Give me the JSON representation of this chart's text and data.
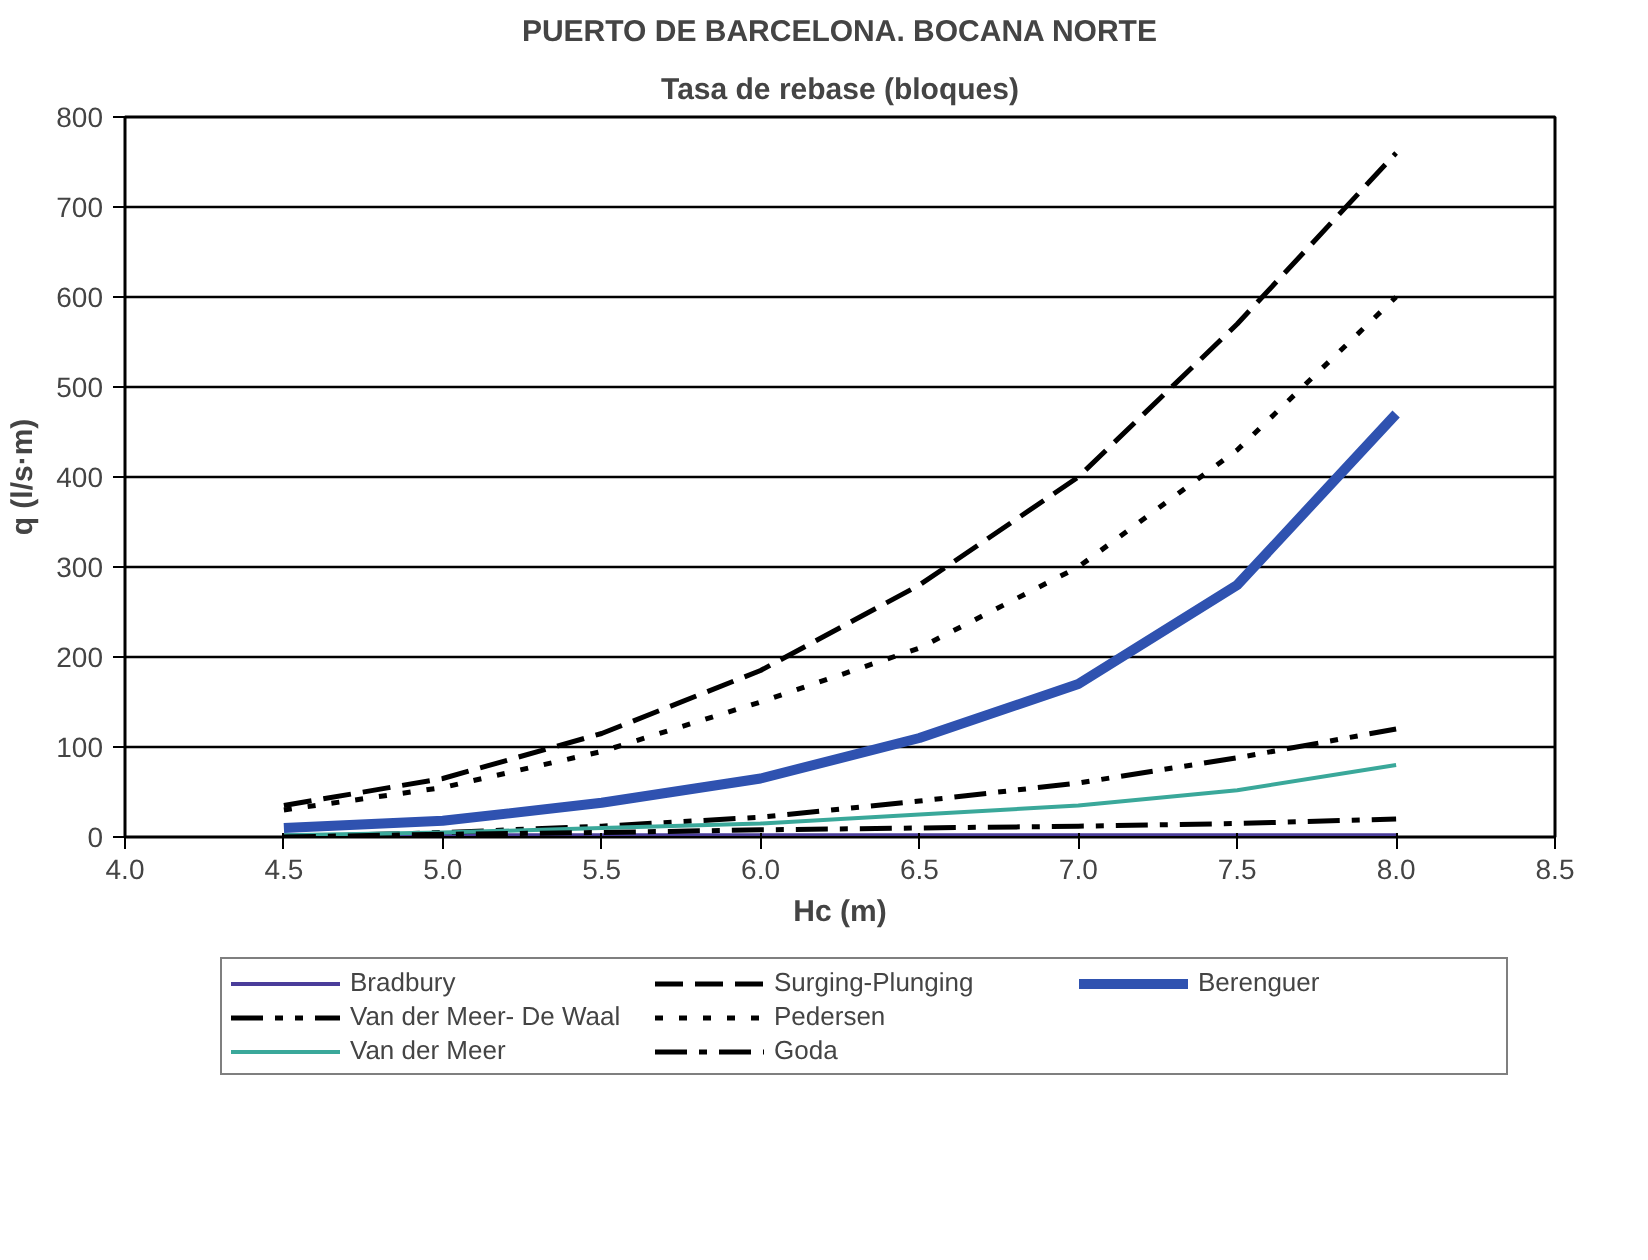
{
  "chart_data": {
    "type": "line",
    "title": "PUERTO DE BARCELONA. BOCANA NORTE",
    "subtitle": "Tasa de rebase (bloques)",
    "xlabel": "Hc (m)",
    "ylabel": "q (l/s·m)",
    "x": [
      4.5,
      5.0,
      5.5,
      6.0,
      6.5,
      7.0,
      7.5,
      8.0
    ],
    "series": [
      {
        "name": "Bradbury",
        "color": "#4a3d9a",
        "line_style": "solid",
        "values": [
          2,
          2,
          2,
          2,
          2,
          2,
          2,
          2
        ]
      },
      {
        "name": "Van der Meer- De Waal",
        "color": "#000000",
        "line_style": "dashdotdot",
        "values": [
          0,
          5,
          12,
          22,
          40,
          60,
          88,
          120
        ]
      },
      {
        "name": "Van der Meer",
        "color": "#3aa89a",
        "line_style": "solid",
        "values": [
          2,
          5,
          10,
          15,
          25,
          35,
          52,
          80
        ]
      },
      {
        "name": "Surging-Plunging",
        "color": "#000000",
        "line_style": "dashed",
        "values": [
          35,
          65,
          115,
          185,
          280,
          400,
          570,
          760
        ]
      },
      {
        "name": "Pedersen",
        "color": "#000000",
        "line_style": "dotted",
        "values": [
          30,
          55,
          95,
          150,
          210,
          300,
          430,
          600
        ]
      },
      {
        "name": "Goda",
        "color": "#000000",
        "line_style": "dashdot",
        "values": [
          0,
          3,
          5,
          8,
          10,
          12,
          15,
          20
        ]
      },
      {
        "name": "Berenguer",
        "color": "#2f52b0",
        "line_style": "solid",
        "values": [
          10,
          18,
          38,
          65,
          110,
          170,
          280,
          470
        ]
      }
    ],
    "xlim": [
      4.0,
      8.5
    ],
    "xticks": [
      {
        "value": 4.0,
        "label": "4.0"
      },
      {
        "value": 4.5,
        "label": "4.5"
      },
      {
        "value": 5.0,
        "label": "5.0"
      },
      {
        "value": 5.5,
        "label": "5.5"
      },
      {
        "value": 6.0,
        "label": "6.0"
      },
      {
        "value": 6.5,
        "label": "6.5"
      },
      {
        "value": 7.0,
        "label": "7.0"
      },
      {
        "value": 7.5,
        "label": "7.5"
      },
      {
        "value": 8.0,
        "label": "8.0"
      },
      {
        "value": 8.5,
        "label": "8.5"
      }
    ],
    "ylim": [
      0,
      800
    ],
    "yticks": [
      0,
      100,
      200,
      300,
      400,
      500,
      600,
      700,
      800
    ],
    "grid": "y",
    "legend": "bottom",
    "marker": "none"
  }
}
